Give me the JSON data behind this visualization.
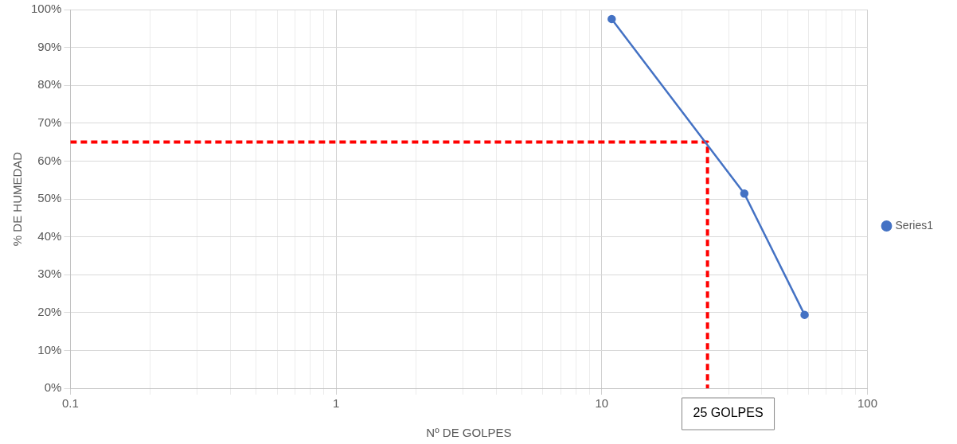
{
  "chart_data": {
    "type": "line",
    "xlabel": "Nº DE GOLPES",
    "ylabel": "% DE HUMEDAD",
    "log": "x",
    "xlim": [
      0.1,
      100
    ],
    "xticks": [
      0.1,
      {
        "value": 0.2,
        "label": null
      },
      {
        "value": 0.3,
        "label": null
      },
      {
        "value": 0.4,
        "label": null
      },
      {
        "value": 0.5,
        "label": null
      },
      {
        "value": 0.6,
        "label": null
      },
      {
        "value": 0.7,
        "label": null
      },
      {
        "value": 0.8,
        "label": null
      },
      {
        "value": 0.9,
        "label": null
      },
      1,
      {
        "value": 2,
        "label": null
      },
      {
        "value": 3,
        "label": null
      },
      {
        "value": 4,
        "label": null
      },
      {
        "value": 5,
        "label": null
      },
      {
        "value": 6,
        "label": null
      },
      {
        "value": 7,
        "label": null
      },
      {
        "value": 8,
        "label": null
      },
      {
        "value": 9,
        "label": null
      },
      10,
      {
        "value": 20,
        "label": null
      },
      {
        "value": 30,
        "label": null
      },
      {
        "value": 40,
        "label": null
      },
      {
        "value": 50,
        "label": null
      },
      {
        "value": 60,
        "label": null
      },
      {
        "value": 70,
        "label": null
      },
      {
        "value": 80,
        "label": null
      },
      {
        "value": 90,
        "label": null
      },
      100
    ],
    "ylim": [
      0,
      100
    ],
    "yticks": [
      {
        "value": 0,
        "label": "0%"
      },
      {
        "value": 10,
        "label": "10%"
      },
      {
        "value": 20,
        "label": "20%"
      },
      {
        "value": 30,
        "label": "30%"
      },
      {
        "value": 40,
        "label": "40%"
      },
      {
        "value": 50,
        "label": "50%"
      },
      {
        "value": 60,
        "label": "60%"
      },
      {
        "value": 70,
        "label": "70%"
      },
      {
        "value": 80,
        "label": "80%"
      },
      {
        "value": 90,
        "label": "90%"
      },
      {
        "value": 100,
        "label": "100%"
      }
    ],
    "grid": true,
    "legend": "right",
    "marker": "circle",
    "line_style": "solid",
    "series": [
      {
        "name": "Series1",
        "color": "#4472c4",
        "x": [
          10.9,
          34.4,
          58
        ],
        "values": [
          97.5,
          51.4,
          19.4
        ]
      },
      {
        "color": "#ff0000",
        "x": [
          0.1,
          25,
          25
        ],
        "values": [
          65,
          65,
          0
        ],
        "line_style": "dashed",
        "marker": "none"
      }
    ],
    "annotations": [
      "25 GOLPES"
    ]
  }
}
